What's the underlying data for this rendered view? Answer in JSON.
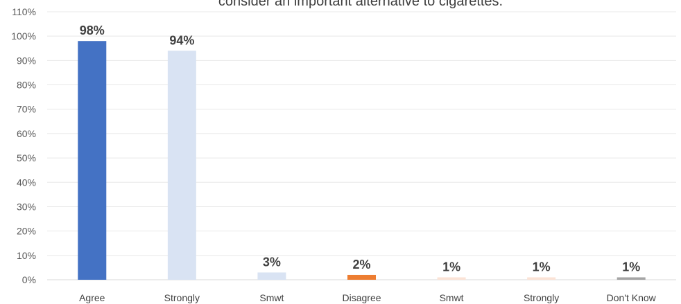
{
  "chart_data": {
    "type": "bar",
    "title": "consider an important alternative to cigarettes.",
    "categories": [
      "Agree",
      "Strongly",
      "Smwt",
      "Disagree",
      "Smwt",
      "Strongly",
      "Don't Know"
    ],
    "values": [
      98,
      94,
      3,
      2,
      1,
      1,
      1
    ],
    "value_labels": [
      "98%",
      "94%",
      "3%",
      "2%",
      "1%",
      "1%",
      "1%"
    ],
    "colors": [
      "#4472C4",
      "#D9E3F3",
      "#D9E3F3",
      "#ED7D31",
      "#FBE3D6",
      "#FBE3D6",
      "#A5A5A5"
    ],
    "yticks": [
      "0%",
      "10%",
      "20%",
      "30%",
      "40%",
      "50%",
      "60%",
      "70%",
      "80%",
      "90%",
      "100%",
      "110%"
    ],
    "ylim": [
      0,
      110
    ],
    "xlabel": "",
    "ylabel": "",
    "grid": true,
    "legend": "none"
  }
}
